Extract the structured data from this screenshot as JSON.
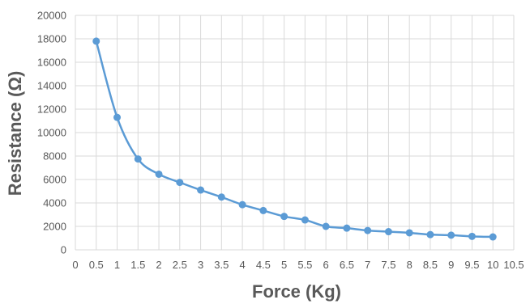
{
  "chart_data": {
    "type": "line",
    "title": "",
    "xlabel": "Force (Kg)",
    "ylabel": "Resistance (Ω)",
    "xlim": [
      0,
      10.5
    ],
    "ylim": [
      0,
      20000
    ],
    "x_ticks": [
      0,
      0.5,
      1,
      1.5,
      2,
      2.5,
      3,
      3.5,
      4,
      4.5,
      5,
      5.5,
      6,
      6.5,
      7,
      7.5,
      8,
      8.5,
      9,
      9.5,
      10,
      10.5
    ],
    "y_ticks": [
      0,
      2000,
      4000,
      6000,
      8000,
      10000,
      12000,
      14000,
      16000,
      18000,
      20000
    ],
    "grid": true,
    "smooth": true,
    "color": "#5b9bd5",
    "series": [
      {
        "x": [
          0.5,
          1,
          1.5,
          2,
          2.5,
          3,
          3.5,
          4,
          4.5,
          5,
          5.5,
          6,
          6.5,
          7,
          7.5,
          8,
          8.5,
          9,
          9.5,
          10
        ],
        "y": [
          17800,
          11300,
          7750,
          6450,
          5750,
          5100,
          4500,
          3850,
          3350,
          2850,
          2550,
          2000,
          1850,
          1650,
          1550,
          1450,
          1300,
          1250,
          1150,
          1100
        ]
      }
    ]
  }
}
